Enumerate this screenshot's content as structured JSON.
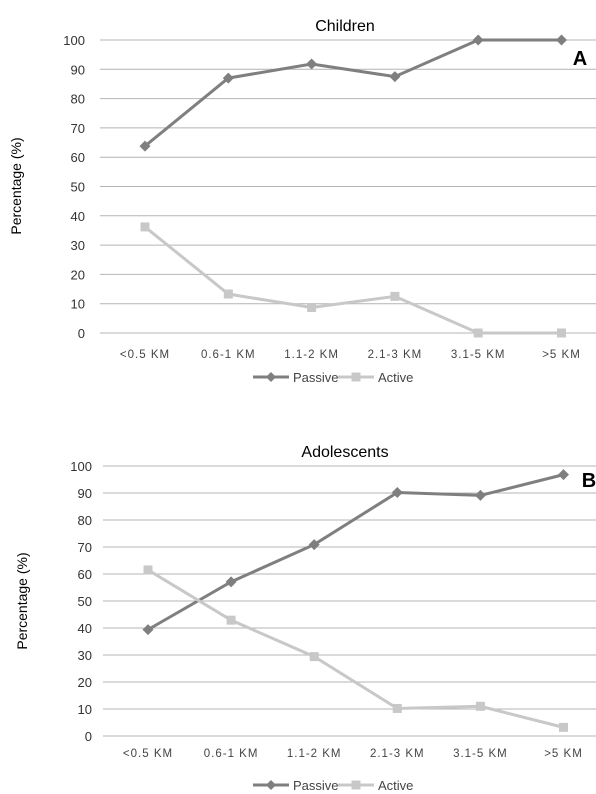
{
  "chart_data": [
    {
      "type": "line",
      "panel_letter": "A",
      "title": "Children",
      "ylabel": "Percentage (%)",
      "xlabel": "",
      "categories": [
        "<0.5  KM",
        "0.6-1  KM",
        "1.1-2  KM",
        "2.1-3  KM",
        "3.1-5  KM",
        ">5 KM"
      ],
      "ylim": [
        0,
        100
      ],
      "yticks": [
        0,
        10,
        20,
        30,
        40,
        50,
        60,
        70,
        80,
        90,
        100
      ],
      "grid": true,
      "legend_position": "bottom",
      "series": [
        {
          "name": "Passive",
          "marker": "diamond",
          "color": "#7f7f7f",
          "values": [
            63.8,
            87.0,
            91.8,
            87.5,
            100,
            100
          ]
        },
        {
          "name": "Active",
          "marker": "square",
          "color": "#c8c8c8",
          "values": [
            36.2,
            13.3,
            8.7,
            12.5,
            0,
            0
          ]
        }
      ]
    },
    {
      "type": "line",
      "panel_letter": "B",
      "title": "Adolescents",
      "ylabel": "Percentage (%)",
      "xlabel": "",
      "categories": [
        "<0.5  KM",
        "0.6-1  KM",
        "1.1-2  KM",
        "2.1-3  KM",
        "3.1-5  KM",
        ">5 KM"
      ],
      "ylim": [
        0,
        100
      ],
      "yticks": [
        0,
        10,
        20,
        30,
        40,
        50,
        60,
        70,
        80,
        90,
        100
      ],
      "grid": true,
      "legend_position": "bottom",
      "series": [
        {
          "name": "Passive",
          "marker": "diamond",
          "color": "#7f7f7f",
          "values": [
            39.4,
            57.1,
            70.9,
            90.2,
            89.1,
            96.8
          ]
        },
        {
          "name": "Active",
          "marker": "square",
          "color": "#c8c8c8",
          "values": [
            61.5,
            42.9,
            29.4,
            10.2,
            11.0,
            3.2
          ]
        }
      ]
    }
  ]
}
